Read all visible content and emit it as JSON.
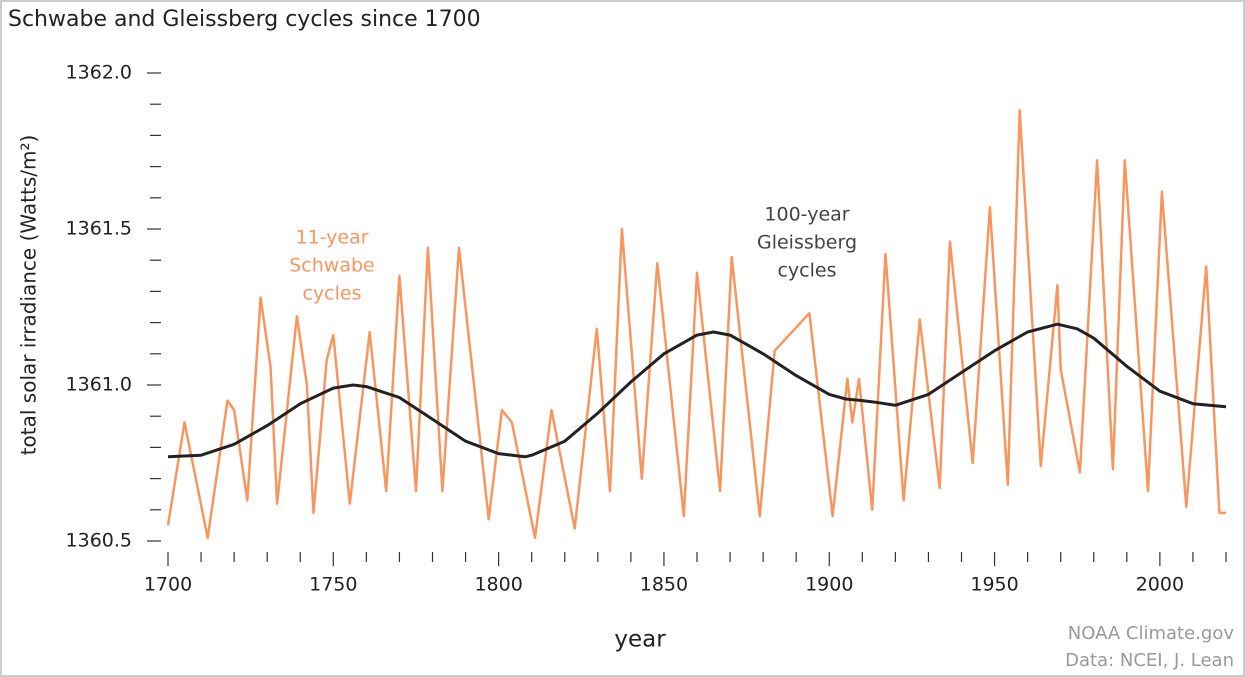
{
  "chart_data": {
    "type": "line",
    "title": "Schwabe and Gleissberg cycles since 1700",
    "x_label": "year",
    "y_label": "total solar irradiance (Watts/m²)",
    "xlim": [
      1700,
      2020
    ],
    "xticks": [
      1700,
      1750,
      1800,
      1850,
      1900,
      1950,
      2000
    ],
    "xticks_minor": [
      1710,
      1720,
      1730,
      1740,
      1760,
      1770,
      1780,
      1790,
      1810,
      1820,
      1830,
      1840,
      1860,
      1870,
      1880,
      1890,
      1910,
      1920,
      1930,
      1940,
      1960,
      1970,
      1980,
      1990,
      2010,
      2020
    ],
    "ylim": [
      1360.5,
      1362.0
    ],
    "yticks": [
      {
        "value": 1360.5,
        "label": "1360.5"
      },
      {
        "value": 1361,
        "label": "1361.0"
      },
      {
        "value": 1361.5,
        "label": "1361.5"
      },
      {
        "value": 1362,
        "label": "1362.0"
      }
    ],
    "yticks_minor": [
      1360.6,
      1360.7,
      1360.8,
      1360.9,
      1361.1,
      1361.2,
      1361.3,
      1361.4,
      1361.6,
      1361.7,
      1361.8,
      1361.9
    ],
    "series": [
      {
        "name": "11-year Schwabe cycles",
        "color": "#f7975f",
        "x": [
          1700,
          1705,
          1712,
          1718,
          1720,
          1724,
          1728,
          1731,
          1733,
          1739,
          1742,
          1744,
          1748,
          1750,
          1755,
          1761,
          1766,
          1770,
          1775,
          1778.6,
          1783,
          1788,
          1797,
          1801,
          1804,
          1811,
          1816,
          1823,
          1829.7,
          1833.7,
          1837.3,
          1843.3,
          1848,
          1856,
          1860,
          1867,
          1870.5,
          1879,
          1883.5,
          1894,
          1901,
          1905.5,
          1907,
          1909,
          1913,
          1917,
          1922.5,
          1927.4,
          1933.4,
          1936.5,
          1943.4,
          1948.6,
          1954,
          1957.6,
          1964,
          1969,
          1970,
          1975.8,
          1981,
          1985.8,
          1989.4,
          1996.4,
          2000.6,
          2008,
          2014,
          2018,
          2020
        ],
        "values": [
          1360.55,
          1360.88,
          1360.51,
          1360.95,
          1360.92,
          1360.63,
          1361.28,
          1361.06,
          1360.62,
          1361.22,
          1361.0,
          1360.59,
          1361.08,
          1361.16,
          1360.62,
          1361.17,
          1360.66,
          1361.35,
          1360.66,
          1361.44,
          1360.66,
          1361.44,
          1360.57,
          1360.92,
          1360.88,
          1360.51,
          1360.92,
          1360.54,
          1361.18,
          1360.66,
          1361.5,
          1360.7,
          1361.39,
          1360.58,
          1361.36,
          1360.66,
          1361.41,
          1360.58,
          1361.11,
          1361.23,
          1360.58,
          1361.02,
          1360.88,
          1361.02,
          1360.6,
          1361.42,
          1360.63,
          1361.21,
          1360.67,
          1361.46,
          1360.75,
          1361.57,
          1360.68,
          1361.88,
          1360.74,
          1361.32,
          1361.05,
          1360.72,
          1361.72,
          1360.73,
          1361.72,
          1360.66,
          1361.62,
          1360.61,
          1361.38,
          1360.59,
          1360.59
        ]
      },
      {
        "name": "100-year Gleissberg cycles",
        "color": "#222222",
        "x": [
          1700,
          1710,
          1720,
          1730,
          1740,
          1750,
          1756,
          1760,
          1770,
          1780,
          1790,
          1800,
          1808,
          1810,
          1820,
          1830,
          1840,
          1850,
          1860,
          1865,
          1870,
          1880,
          1890,
          1900,
          1905,
          1910,
          1914,
          1920,
          1930,
          1940,
          1950,
          1960,
          1969,
          1975,
          1980,
          1990,
          2000,
          2010,
          2020
        ],
        "values": [
          1360.77,
          1360.775,
          1360.81,
          1360.87,
          1360.94,
          1360.99,
          1361.0,
          1360.995,
          1360.96,
          1360.89,
          1360.82,
          1360.78,
          1360.77,
          1360.775,
          1360.82,
          1360.91,
          1361.01,
          1361.1,
          1361.16,
          1361.17,
          1361.16,
          1361.1,
          1361.03,
          1360.97,
          1360.955,
          1360.95,
          1360.945,
          1360.935,
          1360.97,
          1361.04,
          1361.11,
          1361.17,
          1361.195,
          1361.18,
          1361.15,
          1361.06,
          1360.98,
          1360.94,
          1360.93
        ]
      }
    ],
    "annotations": [
      {
        "lines": [
          "11-year",
          "Schwabe",
          "cycles"
        ],
        "color": "#f7975f"
      },
      {
        "lines": [
          "100-year",
          "Gleissberg",
          "cycles"
        ],
        "color": "#444444"
      }
    ],
    "credits": [
      "NOAA Climate.gov",
      "Data: NCEI, J. Lean"
    ]
  }
}
